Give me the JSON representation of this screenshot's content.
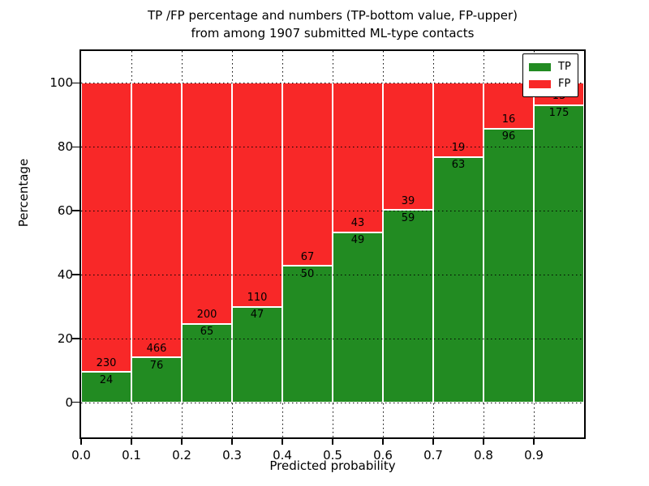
{
  "chart_data": {
    "type": "bar",
    "stacked": true,
    "title_line1": "TP /FP percentage and numbers (TP-bottom value, FP-upper)",
    "title_line2": "from among 1907 submitted ML-type contacts",
    "xlabel": "Predicted probability",
    "ylabel": "Percentage",
    "total_contacts": 1907,
    "bin_width": 0.1,
    "x_tick_labels": [
      "0.0",
      "0.1",
      "0.2",
      "0.3",
      "0.4",
      "0.5",
      "0.6",
      "0.7",
      "0.8",
      "0.9"
    ],
    "y_ticks": [
      0,
      20,
      40,
      60,
      80,
      100
    ],
    "ylim": [
      -11,
      110
    ],
    "xlim": [
      0.0,
      1.0
    ],
    "grid": "dotted",
    "legend_position": "upper right",
    "series": [
      {
        "name": "TP",
        "color": "#228B22",
        "values": [
          24,
          76,
          65,
          47,
          50,
          49,
          59,
          63,
          96,
          175
        ]
      },
      {
        "name": "FP",
        "color": "#F82828",
        "values": [
          230,
          466,
          200,
          110,
          67,
          43,
          39,
          19,
          16,
          13
        ]
      }
    ]
  }
}
